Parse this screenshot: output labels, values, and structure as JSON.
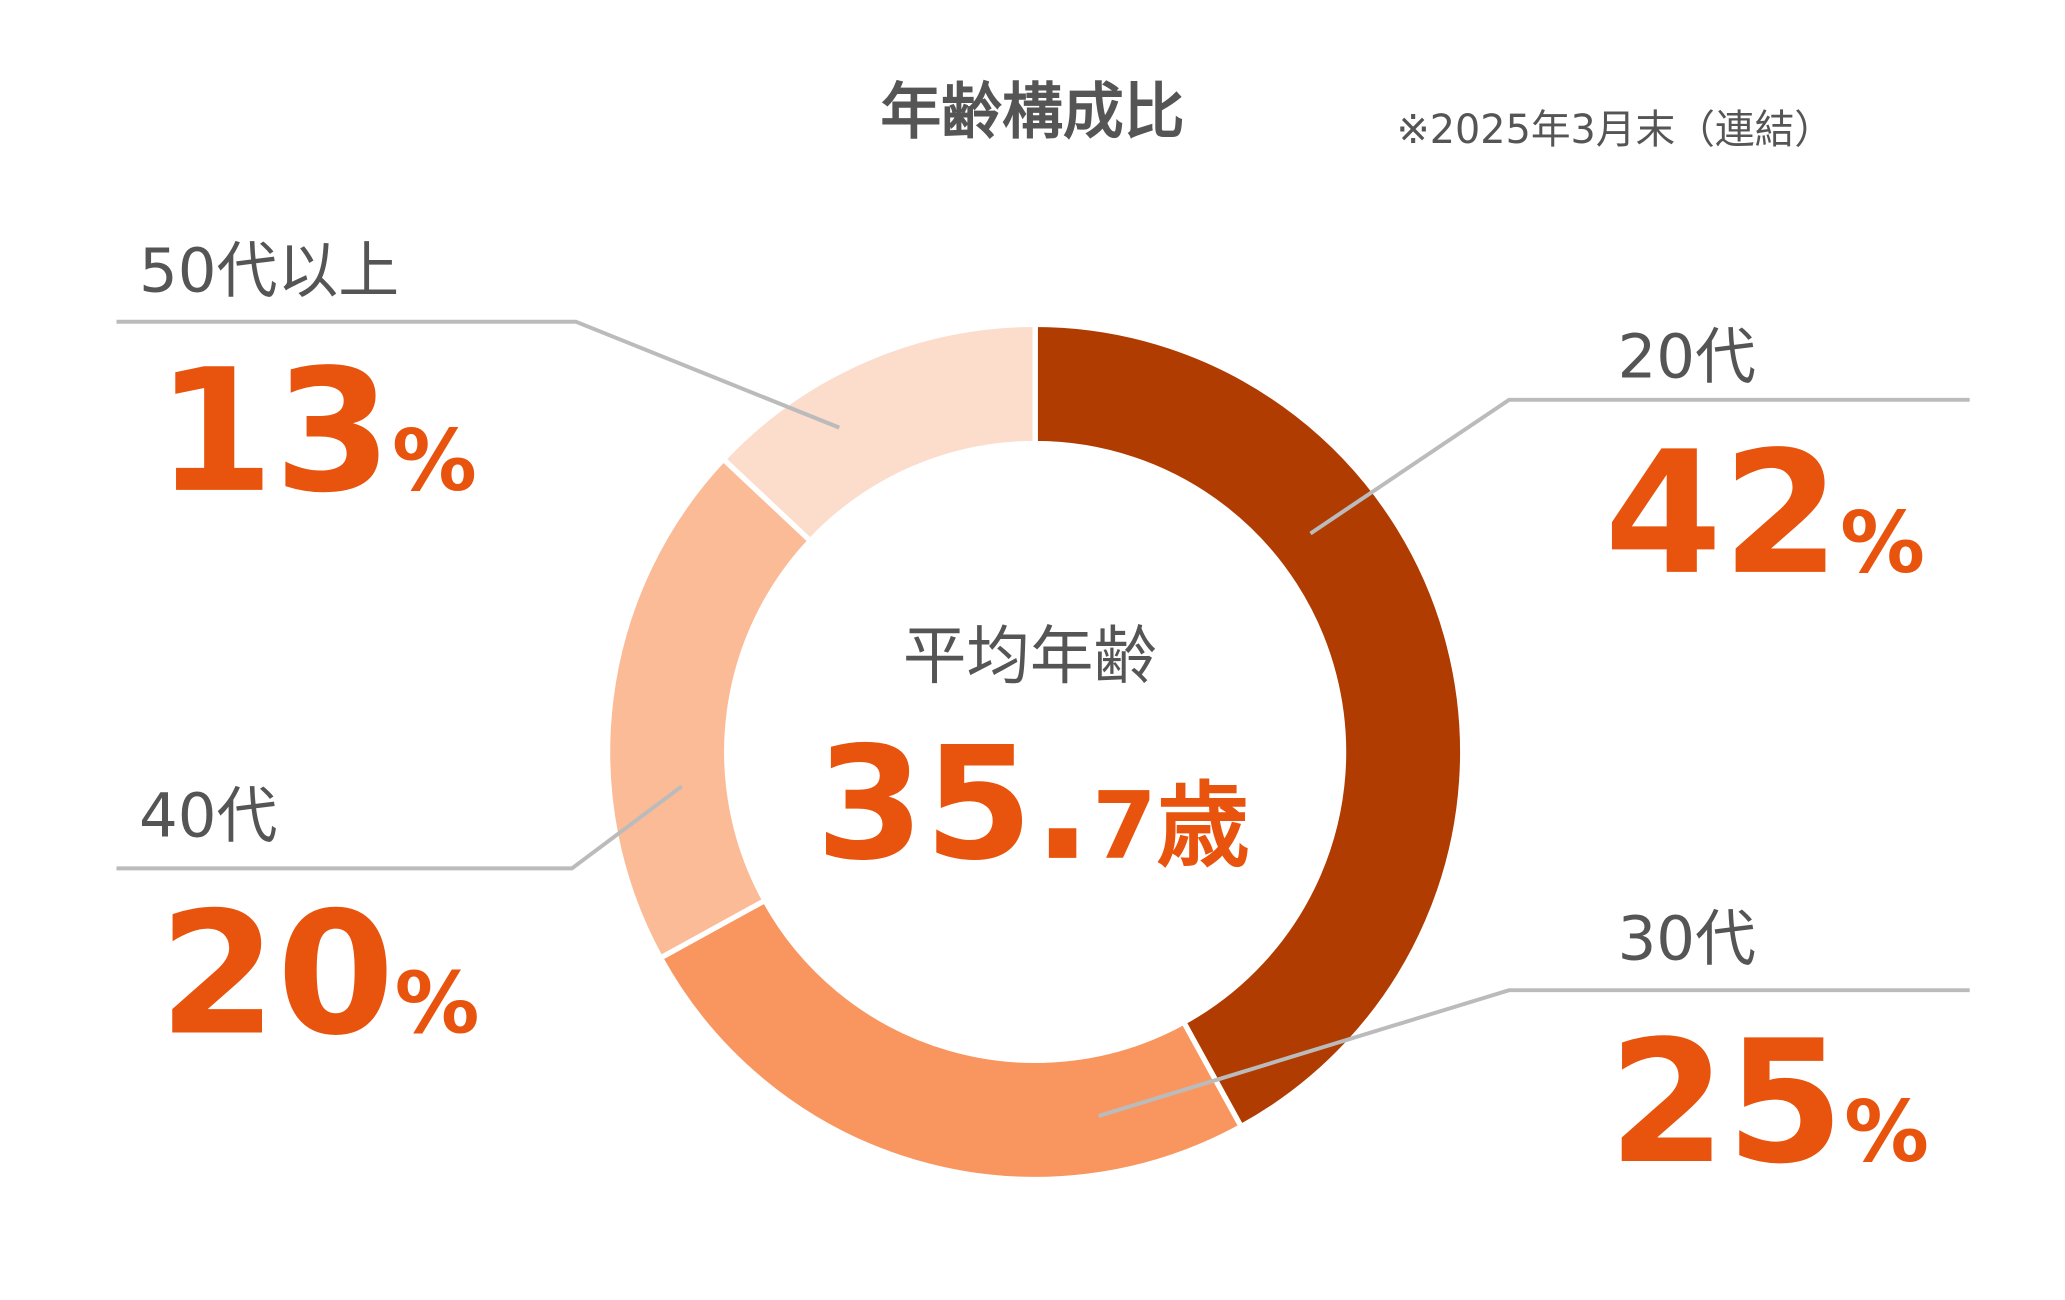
{
  "chart_data": {
    "type": "donut",
    "title": "年齢構成比",
    "subtitle": "※2025年3月末（連結）",
    "categories": [
      "20代",
      "30代",
      "40代",
      "50代以上"
    ],
    "values": [
      42,
      25,
      20,
      13
    ],
    "value_labels": [
      "42%",
      "25%",
      "20%",
      "13%"
    ],
    "colors": [
      "#b03c02",
      "#f99660",
      "#fbbb97",
      "#fcdccb"
    ],
    "center_label": "平均年齢",
    "center_value": "35.7歳"
  }
}
